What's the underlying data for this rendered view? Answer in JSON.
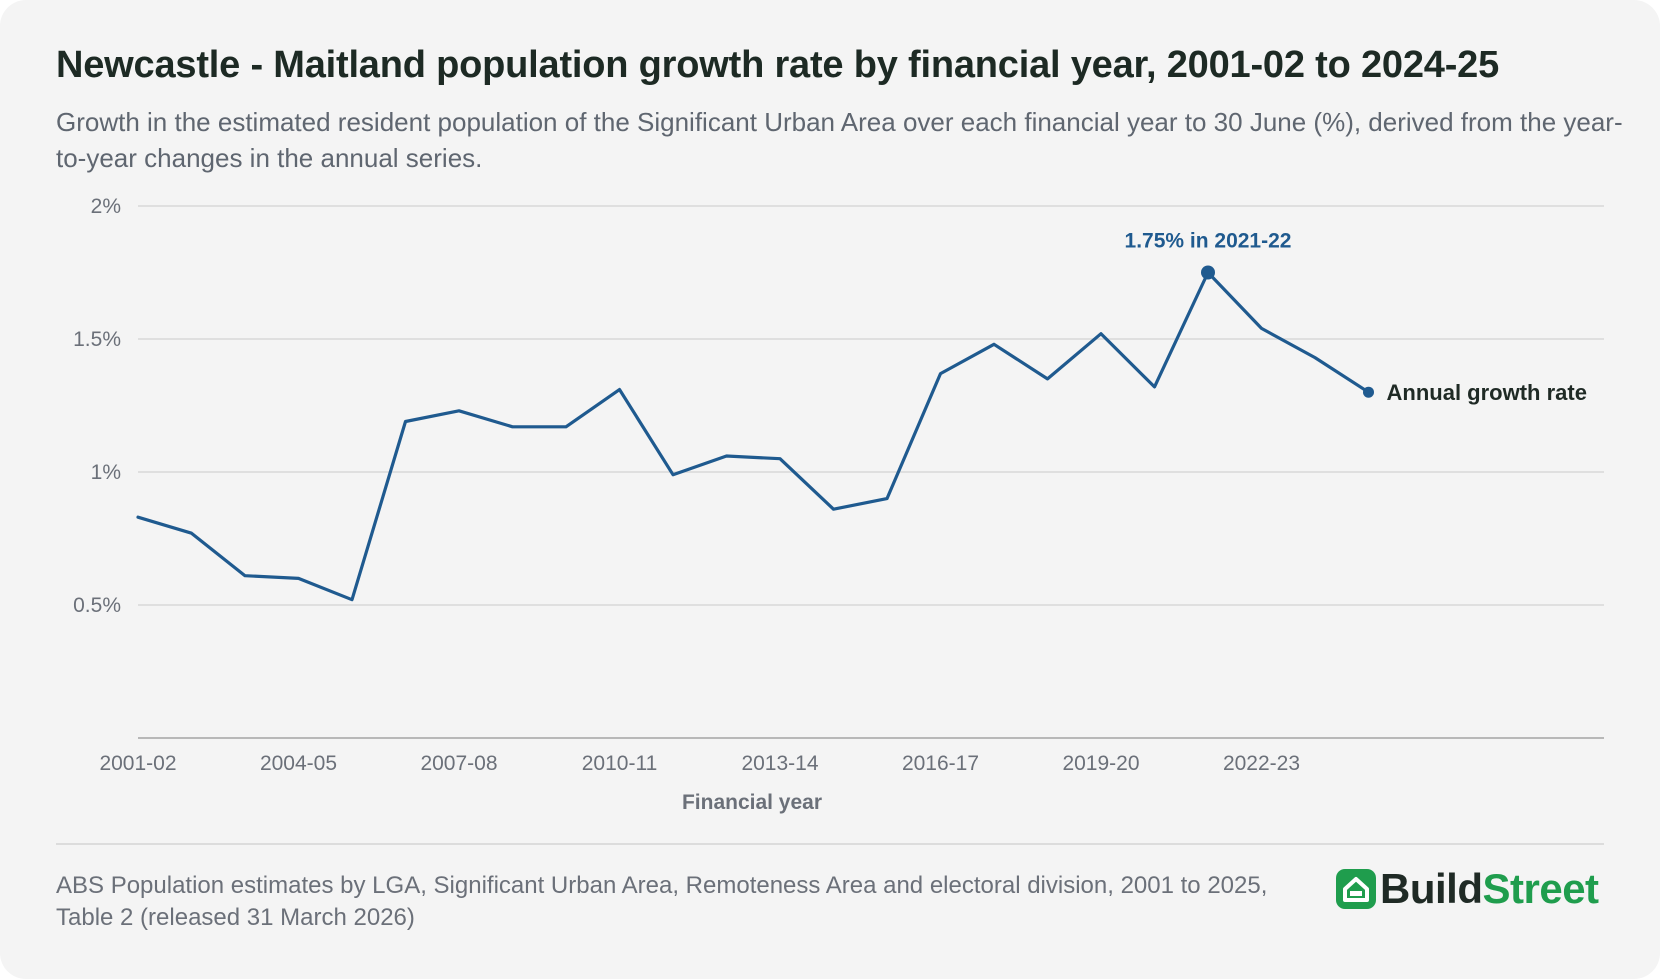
{
  "title": "Newcastle - Maitland population growth rate by financial year, 2001-02 to 2024-25",
  "subtitle": "Growth in the estimated resident population of the Significant Urban Area over each financial year to 30 June (%), derived from the year-to-year changes in the annual series.",
  "source": "ABS Population estimates by LGA, Significant Urban Area, Remoteness Area and electoral division, 2001 to 2025, Table 2 (released 31 March 2026)",
  "logo": {
    "part1": "Build",
    "part2": "Street",
    "icon": "house-icon"
  },
  "colors": {
    "line": "#1f5a8f",
    "logo_green": "#1f9d4d",
    "background": "#f4f4f4"
  },
  "chart_data": {
    "type": "line",
    "title": "Newcastle - Maitland population growth rate by financial year, 2001-02 to 2024-25",
    "xlabel": "Financial year",
    "ylabel": "",
    "ylim": [
      0,
      2
    ],
    "x_range": [
      "2001-02",
      "2028-29"
    ],
    "y_ticks": [
      0.5,
      1,
      1.5,
      2
    ],
    "y_tick_labels": [
      "0.5%",
      "1%",
      "1.5%",
      "2%"
    ],
    "x_tick_labels": [
      "2001-02",
      "2004-05",
      "2007-08",
      "2010-11",
      "2013-14",
      "2016-17",
      "2019-20",
      "2022-23"
    ],
    "grid": true,
    "categories": [
      "2001-02",
      "2002-03",
      "2003-04",
      "2004-05",
      "2005-06",
      "2006-07",
      "2007-08",
      "2008-09",
      "2009-10",
      "2010-11",
      "2011-12",
      "2012-13",
      "2013-14",
      "2014-15",
      "2015-16",
      "2016-17",
      "2017-18",
      "2018-19",
      "2019-20",
      "2020-21",
      "2021-22",
      "2022-23",
      "2023-24",
      "2024-25"
    ],
    "series": [
      {
        "name": "Annual growth rate",
        "values": [
          0.83,
          0.77,
          0.61,
          0.6,
          0.52,
          1.19,
          1.23,
          1.17,
          1.17,
          1.31,
          0.99,
          1.06,
          1.05,
          0.86,
          0.9,
          1.37,
          1.48,
          1.35,
          1.52,
          1.32,
          1.75,
          1.54,
          1.43,
          1.3
        ]
      }
    ],
    "annotations": [
      {
        "text": "1.75% in 2021-22",
        "x": "2021-22",
        "y": 1.75
      }
    ]
  }
}
